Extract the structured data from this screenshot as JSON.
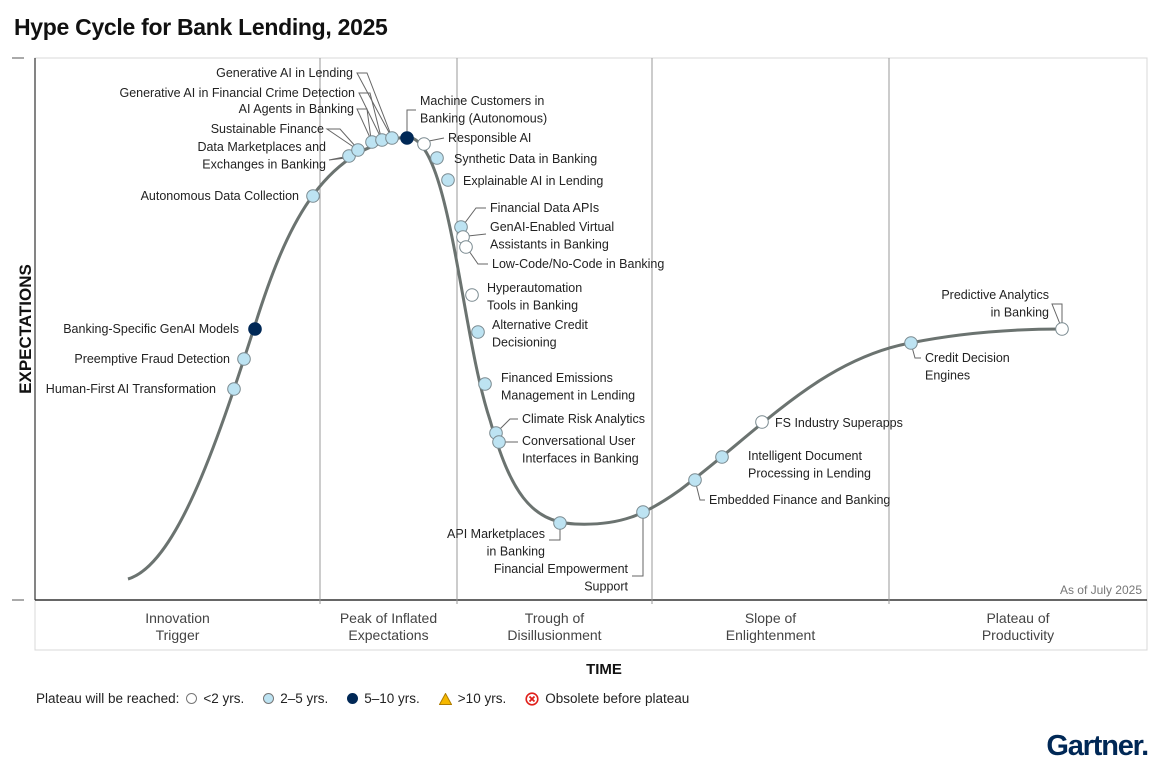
{
  "title": "Hype Cycle for Bank Lending, 2025",
  "chart_data": {
    "type": "hype-cycle",
    "title": "Hype Cycle for Bank Lending, 2025",
    "ylabel": "EXPECTATIONS",
    "xlabel": "TIME",
    "as_of": "As of July 2025",
    "phases": [
      [
        "Innovation",
        "Trigger"
      ],
      [
        "Peak of Inflated",
        "Expectations"
      ],
      [
        "Trough of",
        "Disillusionment"
      ],
      [
        "Slope of",
        "Enlightenment"
      ],
      [
        "Plateau of",
        "Productivity"
      ]
    ],
    "categories": {
      "lt2": {
        "label": "<2 yrs.",
        "color": "#ffffff"
      },
      "2to5": {
        "label": "2–5 yrs.",
        "color": "#bde3f2"
      },
      "5to10": {
        "label": "5–10 yrs.",
        "color": "#002856"
      },
      "gt10": {
        "label": ">10 yrs.",
        "color": "#f5b800"
      },
      "obsolete": {
        "label": "Obsolete before plateau",
        "color": "#e0201b"
      }
    },
    "technologies": [
      {
        "name": [
          "Human-First AI Transformation"
        ],
        "phase": "Innovation Trigger",
        "plateau": "2to5"
      },
      {
        "name": [
          "Preemptive Fraud Detection"
        ],
        "phase": "Innovation Trigger",
        "plateau": "2to5"
      },
      {
        "name": [
          "Banking-Specific GenAI Models"
        ],
        "phase": "Innovation Trigger",
        "plateau": "5to10"
      },
      {
        "name": [
          "Autonomous Data Collection"
        ],
        "phase": "Innovation Trigger",
        "plateau": "2to5"
      },
      {
        "name": [
          "Data Marketplaces and",
          "Exchanges in Banking"
        ],
        "phase": "Peak of Inflated Expectations",
        "plateau": "2to5"
      },
      {
        "name": [
          "Sustainable Finance"
        ],
        "phase": "Peak of Inflated Expectations",
        "plateau": "2to5"
      },
      {
        "name": [
          "AI Agents in Banking"
        ],
        "phase": "Peak of Inflated Expectations",
        "plateau": "2to5"
      },
      {
        "name": [
          "Generative AI in Financial Crime Detection"
        ],
        "phase": "Peak of Inflated Expectations",
        "plateau": "2to5"
      },
      {
        "name": [
          "Generative AI in Lending"
        ],
        "phase": "Peak of Inflated Expectations",
        "plateau": "2to5"
      },
      {
        "name": [
          "Machine Customers in",
          "Banking (Autonomous)"
        ],
        "phase": "Peak of Inflated Expectations",
        "plateau": "5to10"
      },
      {
        "name": [
          "Responsible AI"
        ],
        "phase": "Peak of Inflated Expectations",
        "plateau": "lt2"
      },
      {
        "name": [
          "Synthetic Data in Banking"
        ],
        "phase": "Peak of Inflated Expectations",
        "plateau": "2to5"
      },
      {
        "name": [
          "Explainable AI in Lending"
        ],
        "phase": "Trough of Disillusionment",
        "plateau": "2to5"
      },
      {
        "name": [
          "Financial Data APIs"
        ],
        "phase": "Trough of Disillusionment",
        "plateau": "2to5"
      },
      {
        "name": [
          "GenAI-Enabled Virtual",
          "Assistants in Banking"
        ],
        "phase": "Trough of Disillusionment",
        "plateau": "lt2"
      },
      {
        "name": [
          "Low-Code/No-Code in Banking"
        ],
        "phase": "Trough of Disillusionment",
        "plateau": "lt2"
      },
      {
        "name": [
          "Hyperautomation",
          "Tools in Banking"
        ],
        "phase": "Trough of Disillusionment",
        "plateau": "lt2"
      },
      {
        "name": [
          "Alternative Credit",
          "Decisioning"
        ],
        "phase": "Trough of Disillusionment",
        "plateau": "2to5"
      },
      {
        "name": [
          "Financed Emissions",
          "Management in Lending"
        ],
        "phase": "Trough of Disillusionment",
        "plateau": "2to5"
      },
      {
        "name": [
          "Climate Risk Analytics"
        ],
        "phase": "Trough of Disillusionment",
        "plateau": "2to5"
      },
      {
        "name": [
          "Conversational User",
          "Interfaces in Banking"
        ],
        "phase": "Trough of Disillusionment",
        "plateau": "2to5"
      },
      {
        "name": [
          "API Marketplaces",
          "in Banking"
        ],
        "phase": "Trough of Disillusionment",
        "plateau": "2to5"
      },
      {
        "name": [
          "Financial Empowerment",
          "Support"
        ],
        "phase": "Trough of Disillusionment",
        "plateau": "2to5"
      },
      {
        "name": [
          "Embedded Finance and Banking"
        ],
        "phase": "Slope of Enlightenment",
        "plateau": "2to5"
      },
      {
        "name": [
          "Intelligent Document",
          "Processing in Lending"
        ],
        "phase": "Slope of Enlightenment",
        "plateau": "2to5"
      },
      {
        "name": [
          "FS Industry Superapps"
        ],
        "phase": "Slope of Enlightenment",
        "plateau": "lt2"
      },
      {
        "name": [
          "Credit Decision",
          "Engines"
        ],
        "phase": "Slope of Enlightenment",
        "plateau": "2to5"
      },
      {
        "name": [
          "Predictive Analytics",
          "in Banking"
        ],
        "phase": "Plateau of Productivity",
        "plateau": "lt2"
      }
    ]
  },
  "legend": {
    "prefix": "Plateau will be reached:",
    "items": [
      "<2 yrs.",
      "2–5 yrs.",
      "5–10 yrs.",
      ">10 yrs.",
      "Obsolete before plateau"
    ]
  },
  "logo": "Gartner."
}
